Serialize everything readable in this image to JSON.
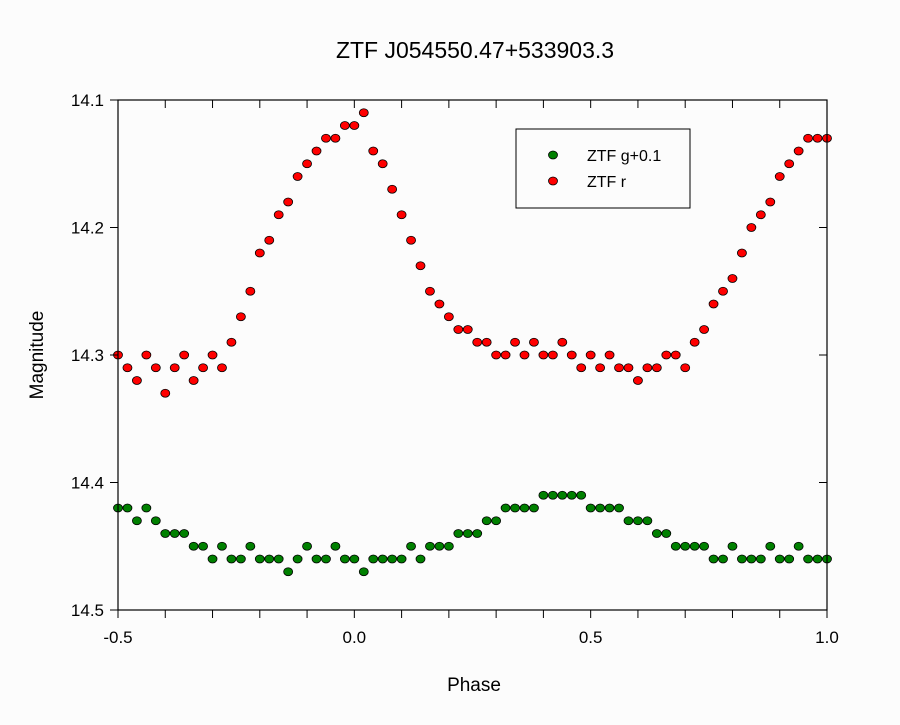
{
  "chart_data": {
    "type": "scatter",
    "title": "ZTF J054550.47+533903.3",
    "xlabel": "Phase",
    "ylabel": "Magnitude",
    "xlim": [
      -0.5,
      1.0
    ],
    "ylim": [
      14.1,
      14.5
    ],
    "y_inverted": true,
    "x_ticks": [
      "-0.5",
      "0.0",
      "0.5",
      "1.0"
    ],
    "x_tick_values": [
      -0.5,
      0.0,
      0.5,
      1.0
    ],
    "y_ticks": [
      "14.1",
      "14.2",
      "14.3",
      "14.4",
      "14.5"
    ],
    "y_tick_values": [
      14.1,
      14.2,
      14.3,
      14.4,
      14.5
    ],
    "grid": false,
    "legend_position": "top-right",
    "x": [
      -0.5,
      -0.48,
      -0.46,
      -0.44,
      -0.42,
      -0.4,
      -0.38,
      -0.36,
      -0.34,
      -0.32,
      -0.3,
      -0.28,
      -0.26,
      -0.24,
      -0.22,
      -0.2,
      -0.18,
      -0.16,
      -0.14,
      -0.12,
      -0.1,
      -0.08,
      -0.06,
      -0.04,
      -0.02,
      0.0,
      0.02,
      0.04,
      0.06,
      0.08,
      0.1,
      0.12,
      0.14,
      0.16,
      0.18,
      0.2,
      0.22,
      0.24,
      0.26,
      0.28,
      0.3,
      0.32,
      0.34,
      0.36,
      0.38,
      0.4,
      0.42,
      0.44,
      0.46,
      0.48,
      0.5,
      0.52,
      0.54,
      0.56,
      0.58,
      0.6,
      0.62,
      0.64,
      0.66,
      0.68,
      0.7,
      0.72,
      0.74,
      0.76,
      0.78,
      0.8,
      0.82,
      0.84,
      0.86,
      0.88,
      0.9,
      0.92,
      0.94,
      0.96,
      0.98,
      1.0
    ],
    "series": [
      {
        "name": "ZTF g+0.1",
        "color": "#008000",
        "values": [
          14.42,
          14.42,
          14.43,
          14.42,
          14.43,
          14.44,
          14.44,
          14.44,
          14.45,
          14.45,
          14.46,
          14.45,
          14.46,
          14.46,
          14.45,
          14.46,
          14.46,
          14.46,
          14.47,
          14.46,
          14.45,
          14.46,
          14.46,
          14.45,
          14.46,
          14.46,
          14.47,
          14.46,
          14.46,
          14.46,
          14.46,
          14.45,
          14.46,
          14.45,
          14.45,
          14.45,
          14.44,
          14.44,
          14.44,
          14.43,
          14.43,
          14.42,
          14.42,
          14.42,
          14.42,
          14.41,
          14.41,
          14.41,
          14.41,
          14.41,
          14.42,
          14.42,
          14.42,
          14.42,
          14.43,
          14.43,
          14.43,
          14.44,
          14.44,
          14.45,
          14.45,
          14.45,
          14.45,
          14.46,
          14.46,
          14.45,
          14.46,
          14.46,
          14.46,
          14.45,
          14.46,
          14.46,
          14.45,
          14.46,
          14.46,
          14.46
        ]
      },
      {
        "name": "ZTF r",
        "color": "#ff0000",
        "values": [
          14.3,
          14.31,
          14.32,
          14.3,
          14.31,
          14.33,
          14.31,
          14.3,
          14.32,
          14.31,
          14.3,
          14.31,
          14.29,
          14.27,
          14.25,
          14.22,
          14.21,
          14.19,
          14.18,
          14.16,
          14.15,
          14.14,
          14.13,
          14.13,
          14.12,
          14.12,
          14.11,
          14.14,
          14.15,
          14.17,
          14.19,
          14.21,
          14.23,
          14.25,
          14.26,
          14.27,
          14.28,
          14.28,
          14.29,
          14.29,
          14.3,
          14.3,
          14.29,
          14.3,
          14.29,
          14.3,
          14.3,
          14.29,
          14.3,
          14.31,
          14.3,
          14.31,
          14.3,
          14.31,
          14.31,
          14.32,
          14.31,
          14.31,
          14.3,
          14.3,
          14.31,
          14.29,
          14.28,
          14.26,
          14.25,
          14.24,
          14.22,
          14.2,
          14.19,
          14.18,
          14.16,
          14.15,
          14.14,
          14.13,
          14.13,
          14.13
        ]
      }
    ]
  }
}
